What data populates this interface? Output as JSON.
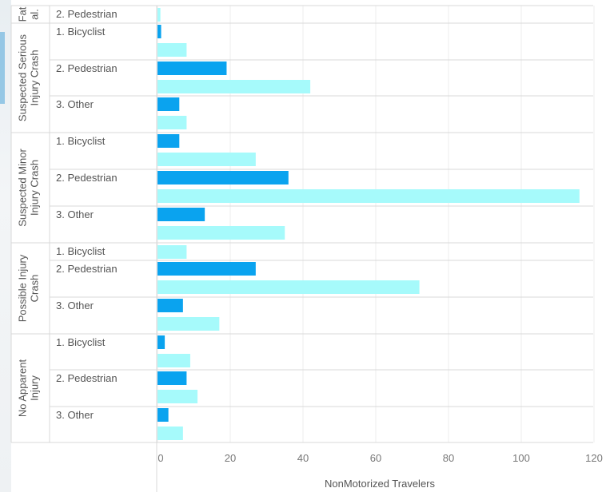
{
  "colors": {
    "series_dark": "#0aa3ef",
    "series_light": "#a6fafb",
    "grid": "#ececec",
    "separator": "#d9d9d9"
  },
  "chart_data": {
    "type": "bar",
    "orientation": "horizontal",
    "x_axis_title": "NonMotorized Travelers",
    "x_ticks": [
      "0",
      "20",
      "40",
      "60",
      "80",
      "100",
      "120"
    ],
    "xlim": [
      0,
      120
    ],
    "grid": true,
    "series": [
      {
        "key": "dark",
        "color": "#0aa3ef"
      },
      {
        "key": "light",
        "color": "#a6fafb"
      }
    ],
    "groups": [
      {
        "label": "Fat al.",
        "rows": [
          {
            "label": "2. Pedestrian",
            "values": [
              0,
              0.8
            ]
          }
        ]
      },
      {
        "label": "Suspected Serious Injury Crash",
        "rows": [
          {
            "label": "1. Bicyclist",
            "values": [
              1,
              8
            ]
          },
          {
            "label": "2. Pedestrian",
            "values": [
              19,
              42
            ]
          },
          {
            "label": "3. Other",
            "values": [
              6,
              8
            ]
          }
        ]
      },
      {
        "label": "Suspected Minor Injury Crash",
        "rows": [
          {
            "label": "1. Bicyclist",
            "values": [
              6,
              27
            ]
          },
          {
            "label": "2. Pedestrian",
            "values": [
              36,
              116
            ]
          },
          {
            "label": "3. Other",
            "values": [
              13,
              35
            ]
          }
        ]
      },
      {
        "label": "Possible Injury Crash",
        "rows": [
          {
            "label": "1. Bicyclist",
            "values": [
              null,
              8
            ]
          },
          {
            "label": "2. Pedestrian",
            "values": [
              27,
              72
            ]
          },
          {
            "label": "3. Other",
            "values": [
              7,
              17
            ]
          }
        ]
      },
      {
        "label": "No Apparent Injury",
        "rows": [
          {
            "label": "1. Bicyclist",
            "values": [
              2,
              9
            ]
          },
          {
            "label": "2. Pedestrian",
            "values": [
              8,
              11
            ]
          },
          {
            "label": "3. Other",
            "values": [
              3,
              7
            ]
          }
        ]
      }
    ]
  }
}
